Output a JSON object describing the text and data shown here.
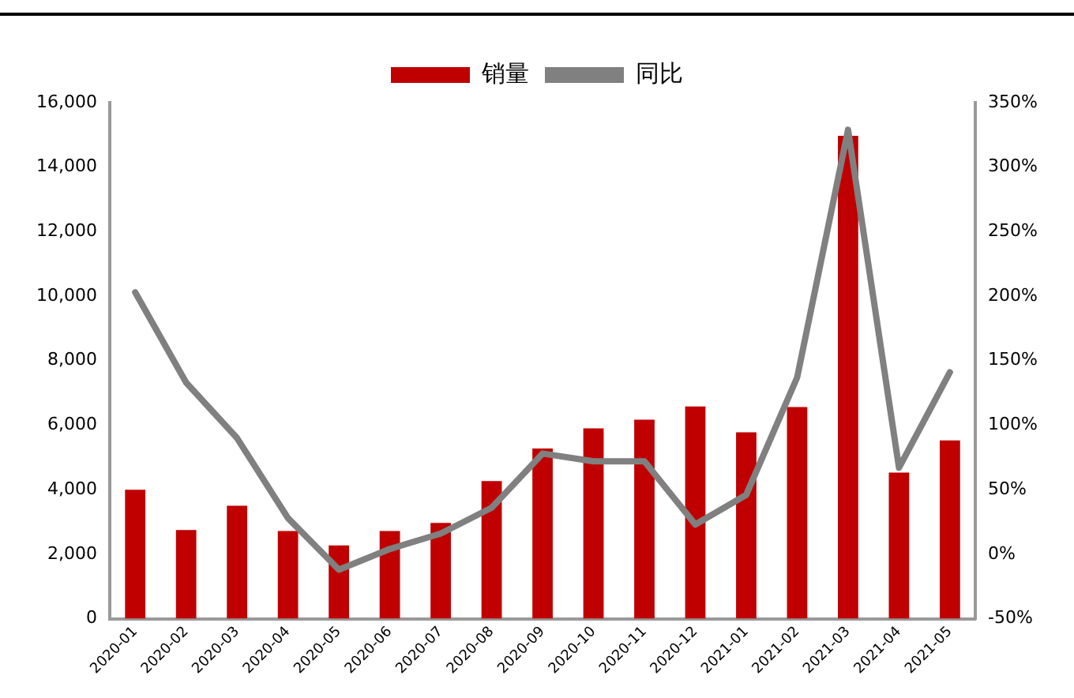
{
  "chart_data": {
    "type": "bar",
    "categories": [
      "2020-01",
      "2020-02",
      "2020-03",
      "2020-04",
      "2020-05",
      "2020-06",
      "2020-07",
      "2020-08",
      "2020-09",
      "2020-10",
      "2020-11",
      "2020-12",
      "2021-01",
      "2021-02",
      "2021-03",
      "2021-04",
      "2021-05"
    ],
    "series": [
      {
        "name": "销量",
        "color": "#c00000",
        "values": [
          4000,
          2750,
          3500,
          2720,
          2270,
          2720,
          2970,
          4270,
          5280,
          5900,
          6170,
          6580,
          5780,
          6560,
          14970,
          4530,
          5530
        ]
      },
      {
        "name": "同比",
        "type": "line",
        "axis": "y2",
        "color": "#808080",
        "values": [
          203,
          133,
          90,
          28,
          -12,
          4,
          16,
          36,
          78,
          72,
          72,
          23,
          46,
          137,
          329,
          67,
          141
        ]
      }
    ],
    "ylim": [
      0,
      16000
    ],
    "yticks": [
      {
        "value": 0,
        "label": "0"
      },
      {
        "value": 2000,
        "label": "2,000"
      },
      {
        "value": 4000,
        "label": "4,000"
      },
      {
        "value": 6000,
        "label": "6,000"
      },
      {
        "value": 8000,
        "label": "8,000"
      },
      {
        "value": 10000,
        "label": "10,000"
      },
      {
        "value": 12000,
        "label": "12,000"
      },
      {
        "value": 14000,
        "label": "14,000"
      },
      {
        "value": 16000,
        "label": "16,000"
      }
    ],
    "y2lim": [
      -50,
      350
    ],
    "y2ticks": [
      {
        "value": -50,
        "label": "-50%"
      },
      {
        "value": 0,
        "label": "0%"
      },
      {
        "value": 50,
        "label": "50%"
      },
      {
        "value": 100,
        "label": "100%"
      },
      {
        "value": 150,
        "label": "150%"
      },
      {
        "value": 200,
        "label": "200%"
      },
      {
        "value": 250,
        "label": "250%"
      },
      {
        "value": 300,
        "label": "300%"
      },
      {
        "value": 350,
        "label": "350%"
      }
    ],
    "legend": "top",
    "grid": false,
    "marker": "none",
    "line_style": "solid"
  }
}
